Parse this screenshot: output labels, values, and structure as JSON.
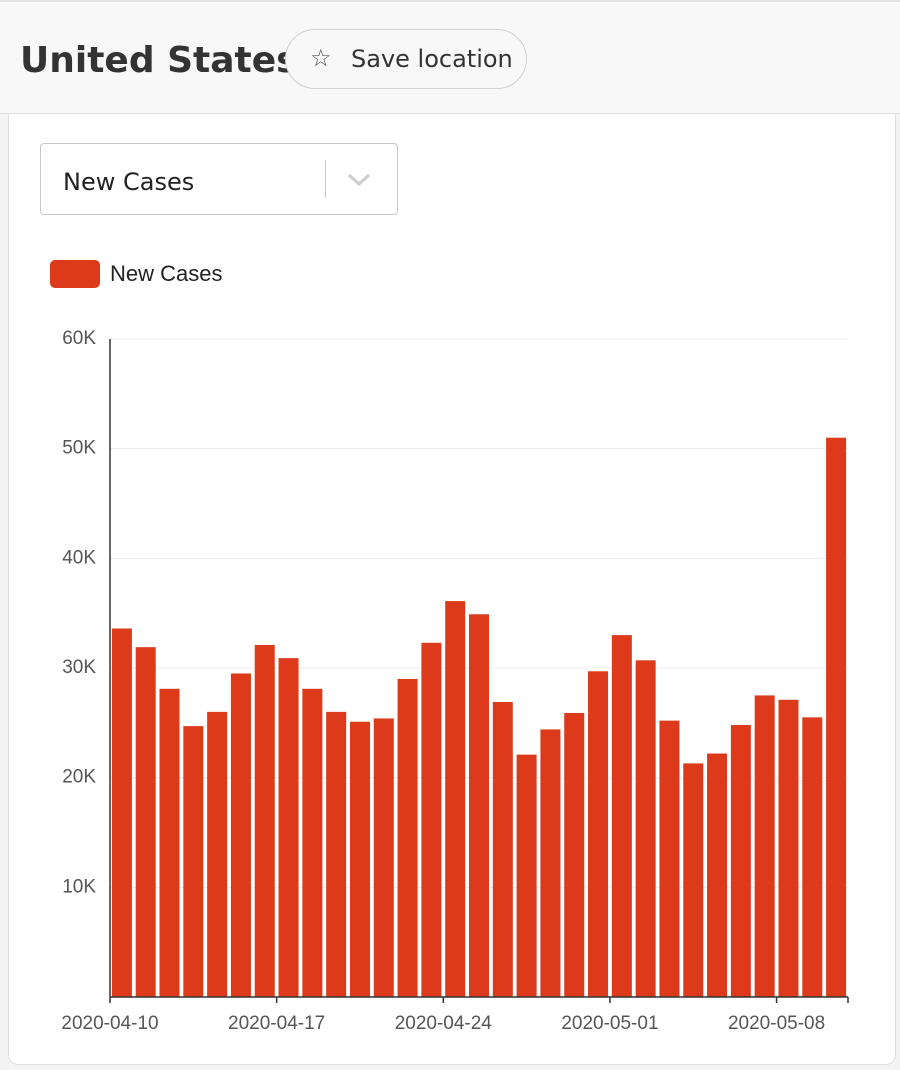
{
  "header": {
    "title": "United States",
    "save_button": "Save location"
  },
  "selector": {
    "selected": "New Cases"
  },
  "chart_data": {
    "type": "bar",
    "categories": [
      "2020-04-10",
      null,
      null,
      null,
      null,
      null,
      null,
      "2020-04-17",
      null,
      null,
      null,
      null,
      null,
      null,
      "2020-04-24",
      null,
      null,
      null,
      null,
      null,
      null,
      "2020-05-01",
      null,
      null,
      null,
      null,
      null,
      null,
      "2020-05-08",
      null,
      null
    ],
    "series": [
      {
        "name": "New Cases",
        "color": "#dc3a1a",
        "values": [
          33600,
          31900,
          28100,
          24700,
          26000,
          29500,
          32100,
          30900,
          28100,
          26000,
          25100,
          25400,
          29000,
          32300,
          36100,
          34900,
          26900,
          22100,
          24400,
          25900,
          29700,
          33000,
          30700,
          25200,
          21300,
          22200,
          24800,
          27500,
          27100,
          25500,
          51000
        ]
      }
    ],
    "ylim": [
      0,
      60000
    ],
    "yticks": [
      {
        "value": 10000,
        "label": "10K"
      },
      {
        "value": 20000,
        "label": "20K"
      },
      {
        "value": 30000,
        "label": "30K"
      },
      {
        "value": 40000,
        "label": "40K"
      },
      {
        "value": 50000,
        "label": "50K"
      },
      {
        "value": 60000,
        "label": "60K"
      }
    ],
    "grid": true,
    "legend": "top-left"
  }
}
